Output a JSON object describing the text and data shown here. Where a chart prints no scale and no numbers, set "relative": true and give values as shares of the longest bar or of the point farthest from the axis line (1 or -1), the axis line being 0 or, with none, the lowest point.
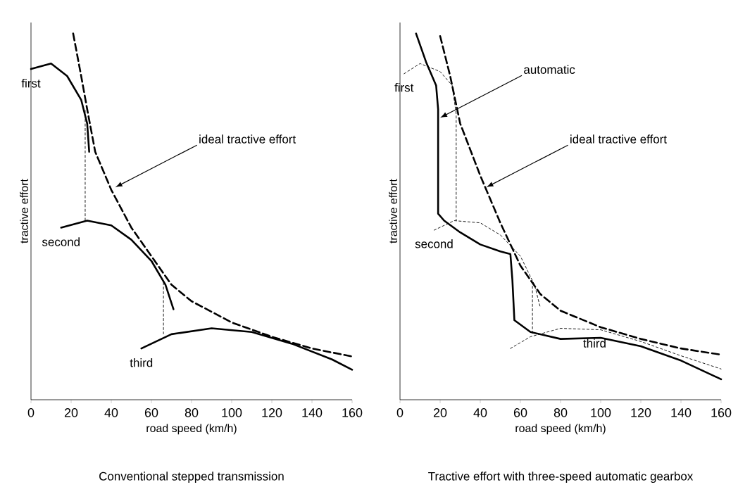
{
  "chart_data": [
    {
      "type": "line",
      "title": "Conventional stepped transmission",
      "xlabel": "road speed (km/h)",
      "ylabel": "tractive effort",
      "relative": true,
      "xlim": [
        0,
        160
      ],
      "xticks": [
        0,
        20,
        40,
        60,
        80,
        100,
        120,
        140,
        160
      ],
      "annotations": [
        {
          "text": "ideal tractive effort",
          "x": 42,
          "y": 0.58
        }
      ],
      "series": [
        {
          "color": "#000000",
          "line_style": "dashed",
          "x": [
            21,
            25,
            28,
            32,
            40,
            50,
            60,
            70,
            80,
            100,
            120,
            140,
            160
          ],
          "values": [
            1.0,
            0.884,
            0.793,
            0.677,
            0.573,
            0.47,
            0.392,
            0.314,
            0.269,
            0.211,
            0.172,
            0.14,
            0.118
          ]
        },
        {
          "name": "first",
          "color": "#000000",
          "line_style": "solid",
          "x": [
            0,
            10,
            18,
            25,
            28,
            29
          ],
          "values": [
            0.903,
            0.918,
            0.884,
            0.819,
            0.754,
            0.677
          ]
        },
        {
          "name": "second",
          "color": "#000000",
          "line_style": "solid",
          "x": [
            15,
            28,
            40,
            50,
            60,
            67,
            71
          ],
          "values": [
            0.47,
            0.489,
            0.476,
            0.437,
            0.379,
            0.314,
            0.247
          ]
        },
        {
          "name": "third",
          "color": "#000000",
          "line_style": "solid",
          "x": [
            55,
            70,
            90,
            110,
            130,
            150,
            160
          ],
          "values": [
            0.14,
            0.179,
            0.195,
            0.185,
            0.153,
            0.11,
            0.082
          ]
        },
        {
          "color": "#000000",
          "line_style": "dotted",
          "x": [
            27,
            27
          ],
          "values": [
            0.79,
            0.489
          ]
        },
        {
          "color": "#000000",
          "line_style": "dotted",
          "x": [
            66,
            66
          ],
          "values": [
            0.32,
            0.18
          ]
        }
      ]
    },
    {
      "type": "line",
      "title": "Tractive effort with three-speed automatic gearbox",
      "xlabel": "road speed (km/h)",
      "ylabel": "tractive effort",
      "relative": true,
      "xlim": [
        0,
        160
      ],
      "xticks": [
        0,
        20,
        40,
        60,
        80,
        100,
        120,
        140,
        160
      ],
      "annotations": [
        {
          "text": "automatic",
          "x": 20,
          "y": 0.77
        },
        {
          "text": "ideal tractive effort",
          "x": 43,
          "y": 0.58
        }
      ],
      "series": [
        {
          "color": "#000000",
          "line_style": "dashed",
          "x": [
            20,
            25,
            30,
            40,
            50,
            60,
            70,
            80,
            100,
            120,
            140,
            160
          ],
          "values": [
            0.993,
            0.884,
            0.754,
            0.612,
            0.483,
            0.366,
            0.288,
            0.243,
            0.198,
            0.166,
            0.14,
            0.123
          ]
        },
        {
          "color": "#000000",
          "line_style": "solid",
          "x": [
            8,
            13,
            18,
            19,
            19,
            22,
            30,
            40,
            50,
            55,
            56,
            57,
            65,
            80,
            100,
            120,
            140,
            160
          ],
          "values": [
            1.0,
            0.922,
            0.858,
            0.793,
            0.508,
            0.489,
            0.457,
            0.424,
            0.405,
            0.398,
            0.327,
            0.217,
            0.185,
            0.166,
            0.169,
            0.146,
            0.107,
            0.056
          ]
        },
        {
          "name": "first",
          "color": "#000000",
          "line_style": "dotted",
          "x": [
            2,
            10,
            20,
            26,
            28,
            28
          ],
          "values": [
            0.89,
            0.918,
            0.896,
            0.858,
            0.78,
            0.489
          ]
        },
        {
          "name": "second",
          "color": "#000000",
          "line_style": "dotted",
          "x": [
            17,
            27,
            40,
            50,
            60,
            67,
            70
          ],
          "values": [
            0.463,
            0.489,
            0.483,
            0.45,
            0.392,
            0.314,
            0.25
          ]
        },
        {
          "color": "#000000",
          "line_style": "dotted",
          "x": [
            66,
            66
          ],
          "values": [
            0.31,
            0.18
          ]
        },
        {
          "name": "third",
          "color": "#000000",
          "line_style": "dotted",
          "x": [
            55,
            65,
            80,
            100,
            120,
            140,
            160
          ],
          "values": [
            0.14,
            0.172,
            0.195,
            0.191,
            0.159,
            0.12,
            0.084
          ]
        }
      ]
    }
  ]
}
